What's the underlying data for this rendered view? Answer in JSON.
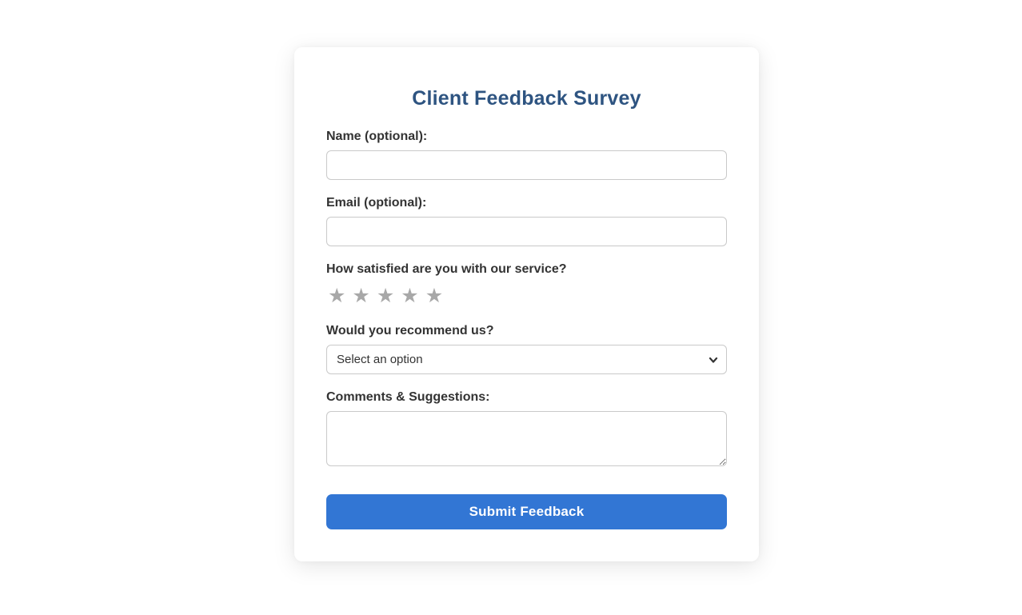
{
  "page": {
    "background": "#ffffff"
  },
  "form": {
    "title": "Client Feedback Survey",
    "fields": {
      "name": {
        "label": "Name (optional):",
        "value": "",
        "placeholder": ""
      },
      "email": {
        "label": "Email (optional):",
        "value": "",
        "placeholder": ""
      },
      "satisfaction": {
        "label": "How satisfied are you with our service?",
        "star_count": 5,
        "selected_stars": 0,
        "star_icon": "★"
      },
      "recommend": {
        "label": "Would you recommend us?",
        "selected_option": "Select an option"
      },
      "comments": {
        "label": "Comments & Suggestions:",
        "value": ""
      }
    },
    "submit_label": "Submit Feedback",
    "colors": {
      "accent": "#3276d4",
      "title": "#2e5481",
      "label": "#333333",
      "input_border": "#c9c9c9",
      "star": "#a8a8a8",
      "button_text": "#ffffff"
    }
  }
}
